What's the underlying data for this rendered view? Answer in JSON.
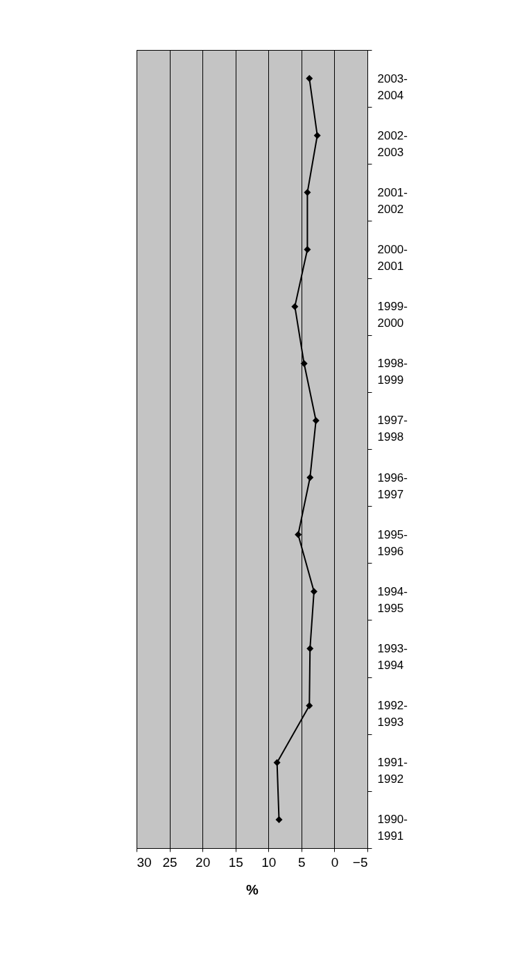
{
  "chart_data": {
    "type": "line",
    "orientation": "horizontal",
    "xlabel": "%",
    "categories": [
      "2003-2004",
      "2002-2003",
      "2001-2002",
      "2000-2001",
      "1999-2000",
      "1998-1999",
      "1997-1998",
      "1996-1997",
      "1995-1996",
      "1994-1995",
      "1993-1994",
      "1992-1993",
      "1991-1992",
      "1990-1991"
    ],
    "series": [
      {
        "color": "#000000",
        "values": [
          3.8,
          2.6,
          4.1,
          4.1,
          6.0,
          4.6,
          2.8,
          3.7,
          5.5,
          3.1,
          3.7,
          3.8,
          8.7,
          8.4
        ]
      }
    ],
    "xlim": [
      30,
      -5
    ],
    "xticks": [
      30,
      25,
      20,
      15,
      10,
      5,
      0,
      -5
    ],
    "grid": "x",
    "marker": "diamond",
    "line_style": "solid"
  }
}
